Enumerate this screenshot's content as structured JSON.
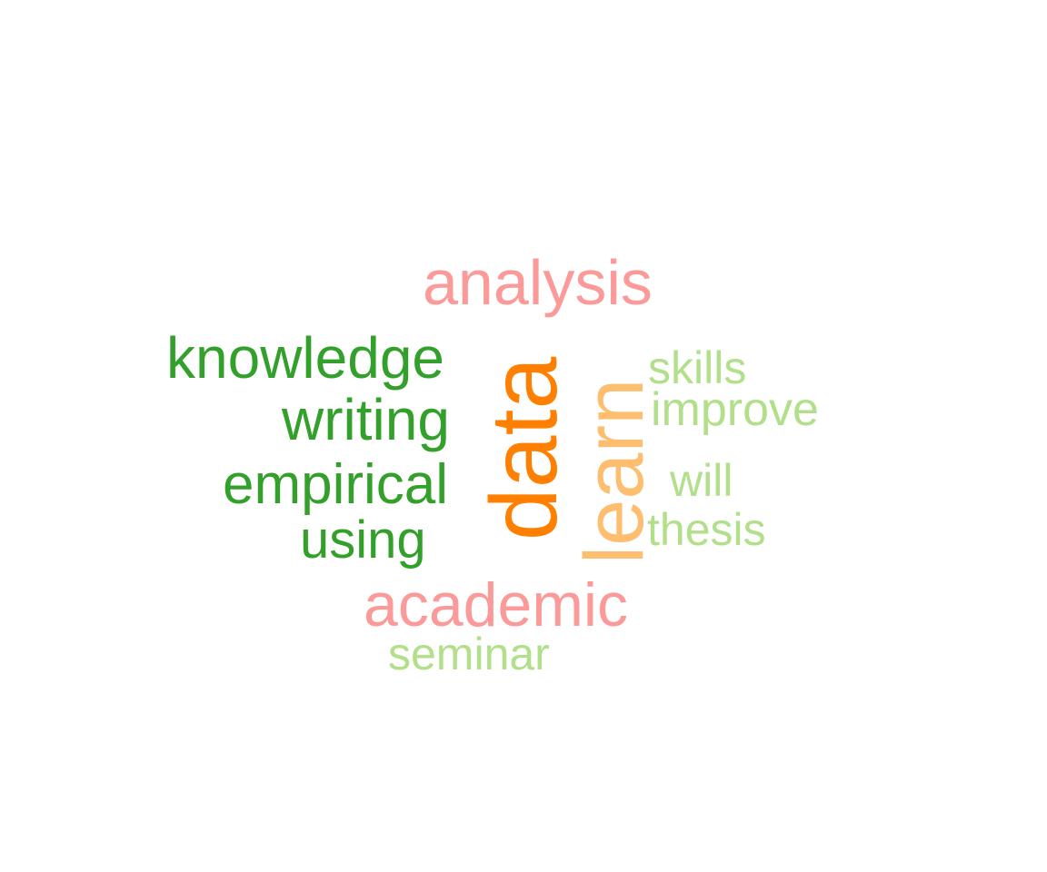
{
  "words": {
    "data": "data",
    "analysis": "analysis",
    "learn": "learn",
    "academic": "academic",
    "knowledge": "knowledge",
    "writing": "writing",
    "empirical": "empirical",
    "using": "using",
    "skills": "skills",
    "improve": "improve",
    "will": "will",
    "thesis": "thesis",
    "seminar": "seminar"
  },
  "colors": {
    "dark_orange": "#ff7f00",
    "light_orange": "#fdbf6f",
    "pink": "#fb9a99",
    "dark_green": "#33a02c",
    "light_green": "#b2df8a",
    "background": "#ffffff"
  }
}
